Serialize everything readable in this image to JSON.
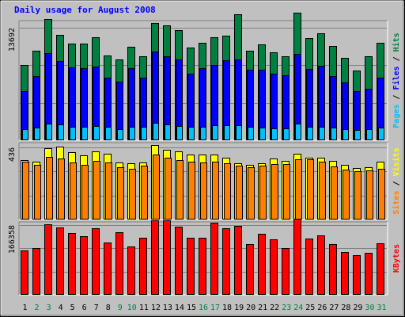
{
  "chart_data": {
    "type": "bar",
    "title": "Daily usage for August 2008",
    "categories": [
      "1",
      "2",
      "3",
      "4",
      "5",
      "6",
      "7",
      "8",
      "9",
      "10",
      "11",
      "12",
      "13",
      "14",
      "15",
      "16",
      "17",
      "18",
      "19",
      "20",
      "21",
      "22",
      "23",
      "24",
      "25",
      "26",
      "27",
      "28",
      "29",
      "30",
      "31"
    ],
    "weekend_categories": [
      "2",
      "3",
      "9",
      "10",
      "16",
      "17",
      "23",
      "24",
      "30",
      "31"
    ],
    "panels": [
      {
        "name": "hits-files-pages",
        "ymax": 13692,
        "ytick_label": "13692",
        "legend": [
          {
            "text": "Pages",
            "color": "#00c0ff"
          },
          {
            "text": " / ",
            "color": "#000000"
          },
          {
            "text": "Files",
            "color": "#0000ff"
          },
          {
            "text": " / ",
            "color": "#000000"
          },
          {
            "text": "Hits",
            "color": "#008040"
          }
        ],
        "series": [
          {
            "name": "Hits",
            "color": "#008040",
            "values": [
              9200,
              10900,
              14800,
              12800,
              11800,
              11800,
              12500,
              10300,
              9800,
              11400,
              10200,
              14300,
              14000,
              13400,
              11300,
              11900,
              12500,
              12700,
              15300,
              10900,
              11700,
              10700,
              10200,
              15500,
              12400,
              13000,
              11500,
              10000,
              8500,
              10200,
              11900
            ]
          },
          {
            "name": "Files",
            "color": "#0000ff",
            "values": [
              6000,
              7800,
              10600,
              9600,
              8900,
              8800,
              9000,
              7600,
              7100,
              8800,
              7600,
              10800,
              10200,
              9800,
              8100,
              8800,
              9200,
              9700,
              9800,
              8600,
              8600,
              8100,
              7900,
              10500,
              8700,
              9100,
              7800,
              7000,
              6000,
              6300,
              7600
            ]
          },
          {
            "name": "Pages",
            "color": "#00c0ff",
            "values": [
              1350,
              1500,
              2050,
              1950,
              1600,
              1600,
              1700,
              1600,
              1350,
              1650,
              1600,
              2100,
              1900,
              1750,
              1650,
              1650,
              1850,
              1850,
              1850,
              1600,
              1550,
              1450,
              1450,
              2000,
              1650,
              1600,
              1550,
              1350,
              1250,
              1350,
              1500
            ]
          }
        ]
      },
      {
        "name": "visits-sites",
        "ymax": 436,
        "ytick_label": "436",
        "legend": [
          {
            "text": "Sites",
            "color": "#ff8000"
          },
          {
            "text": " / ",
            "color": "#000000"
          },
          {
            "text": "Visits",
            "color": "#ffff00"
          }
        ],
        "series": [
          {
            "name": "Visits",
            "color": "#ffff00",
            "values": [
              360,
              350,
              430,
              440,
              405,
              390,
              410,
              400,
              345,
              340,
              345,
              450,
              420,
              410,
              395,
              395,
              395,
              375,
              340,
              330,
              340,
              370,
              355,
              400,
              375,
              375,
              355,
              330,
              310,
              315,
              350
            ]
          },
          {
            "name": "Sites",
            "color": "#ff8000",
            "values": [
              350,
              330,
              380,
              370,
              345,
              330,
              355,
              345,
              315,
              305,
              325,
              395,
              375,
              360,
              350,
              345,
              350,
              340,
              325,
              315,
              325,
              335,
              335,
              365,
              365,
              350,
              320,
              300,
              290,
              295,
              305
            ]
          }
        ]
      },
      {
        "name": "kbytes",
        "ymax": 166358,
        "ytick_label": "166358",
        "legend": [
          {
            "text": "KBytes",
            "color": "#ff0000"
          }
        ],
        "series": [
          {
            "name": "KBytes",
            "color": "#ff0000",
            "values": [
              105000,
              112000,
              168000,
              160000,
              148000,
              140000,
              158000,
              125000,
              150000,
              115000,
              136000,
              177000,
              177000,
              162000,
              136000,
              136000,
              172000,
              158000,
              165000,
              121000,
              146000,
              133000,
              112000,
              182000,
              135000,
              142000,
              121000,
              103000,
              95000,
              100000,
              123000
            ]
          }
        ]
      }
    ],
    "weekday_color": "#000000",
    "weekend_color": "#008040",
    "grid": true
  }
}
